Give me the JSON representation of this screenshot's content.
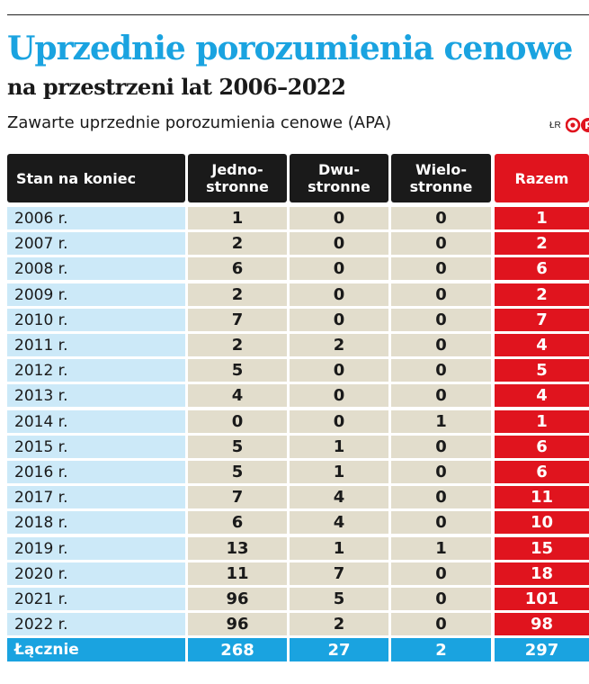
{
  "header": {
    "title": "Uprzednie porozumienia cenowe",
    "subtitle": "na przestrzeni lat 2006–2022",
    "caption": "Zawarte uprzednie porozumienia cenowe (APA)",
    "credit": "ŁR",
    "logo_icon": "rp-logo-icon"
  },
  "colors": {
    "title": "#1aa3e0",
    "header_bg": "#1a1a1a",
    "total_column": "#e0141e",
    "year_column": "#cce9f8",
    "value_cells": "#e2ddcc",
    "totals_row": "#1aa3e0"
  },
  "chart_data": {
    "type": "table",
    "columns": [
      "Stan na koniec",
      "Jedno-\nstronne",
      "Dwu-\nstronne",
      "Wielo-\nstronne",
      "Razem"
    ],
    "rows": [
      [
        "2006 r.",
        "1",
        "0",
        "0",
        "1"
      ],
      [
        "2007 r.",
        "2",
        "0",
        "0",
        "2"
      ],
      [
        "2008 r.",
        "6",
        "0",
        "0",
        "6"
      ],
      [
        "2009 r.",
        "2",
        "0",
        "0",
        "2"
      ],
      [
        "2010 r.",
        "7",
        "0",
        "0",
        "7"
      ],
      [
        "2011 r.",
        "2",
        "2",
        "0",
        "4"
      ],
      [
        "2012 r.",
        "5",
        "0",
        "0",
        "5"
      ],
      [
        "2013 r.",
        "4",
        "0",
        "0",
        "4"
      ],
      [
        "2014 r.",
        "0",
        "0",
        "1",
        "1"
      ],
      [
        "2015 r.",
        "5",
        "1",
        "0",
        "6"
      ],
      [
        "2016 r.",
        "5",
        "1",
        "0",
        "6"
      ],
      [
        "2017 r.",
        "7",
        "4",
        "0",
        "11"
      ],
      [
        "2018 r.",
        "6",
        "4",
        "0",
        "10"
      ],
      [
        "2019 r.",
        "13",
        "1",
        "1",
        "15"
      ],
      [
        "2020 r.",
        "11",
        "7",
        "0",
        "18"
      ],
      [
        "2021 r.",
        "96",
        "5",
        "0",
        "101"
      ],
      [
        "2022 r.",
        "96",
        "2",
        "0",
        "98"
      ]
    ],
    "totals": [
      "Łącznie",
      "268",
      "27",
      "2",
      "297"
    ]
  }
}
